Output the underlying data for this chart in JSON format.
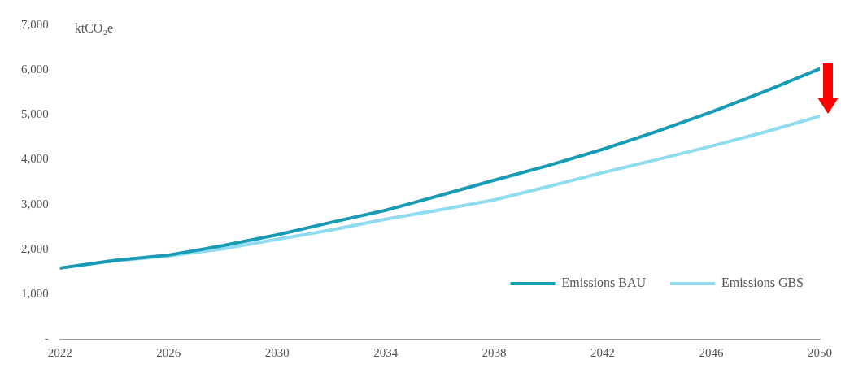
{
  "chart_data": {
    "type": "line",
    "ylabel": "ktCO₂e",
    "x": [
      2022,
      2024,
      2026,
      2028,
      2030,
      2032,
      2034,
      2036,
      2038,
      2040,
      2042,
      2044,
      2046,
      2048,
      2050
    ],
    "series": [
      {
        "name": "Emissions BAU",
        "color": "#1a9bb5",
        "values": [
          1580,
          1750,
          1870,
          2080,
          2320,
          2600,
          2870,
          3200,
          3540,
          3870,
          4230,
          4630,
          5060,
          5530,
          6030
        ]
      },
      {
        "name": "Emissions GBS",
        "color": "#8fdcf0",
        "values": [
          1580,
          1740,
          1850,
          2010,
          2220,
          2430,
          2670,
          2880,
          3100,
          3400,
          3710,
          4000,
          4300,
          4620,
          4970
        ]
      }
    ],
    "xlim": [
      2022,
      2050
    ],
    "xticks": [
      2022,
      2026,
      2030,
      2034,
      2038,
      2042,
      2046,
      2050
    ],
    "ylim": [
      0,
      7000
    ],
    "yticks": [
      {
        "value": 0,
        "label": "-"
      },
      {
        "value": 1000,
        "label": "1,000"
      },
      {
        "value": 2000,
        "label": "2,000"
      },
      {
        "value": 3000,
        "label": "3,000"
      },
      {
        "value": 4000,
        "label": "4,000"
      },
      {
        "value": 5000,
        "label": "5,000"
      },
      {
        "value": 6000,
        "label": "6,000"
      },
      {
        "value": 7000,
        "label": "7,000"
      }
    ],
    "grid": false,
    "legend": "bottom right",
    "marker": "none",
    "line_style": "solid"
  }
}
